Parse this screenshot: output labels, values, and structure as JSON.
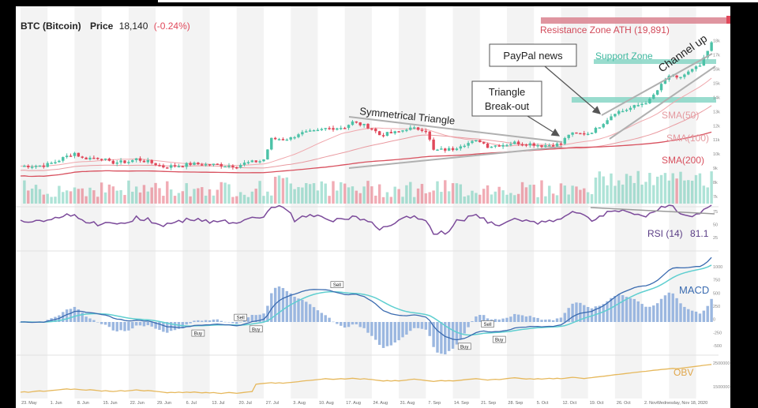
{
  "header": {
    "symbol": "BTC (Bitcoin)",
    "price_label": "Price",
    "price": "18,140",
    "change": "(-0.24%)"
  },
  "annotations": {
    "resistance": "Resistance Zone ATH (19,891)",
    "support": "Support Zone",
    "channel": "Channel up",
    "paypal": "PayPal news",
    "triangle_box_line1": "Triangle",
    "triangle_box_line2": "Break-out",
    "sym_triangle": "Symmetrical Triangle",
    "sma50": "SMA(50)",
    "sma100": "SMA(100)",
    "sma200": "SMA(200)"
  },
  "panels": {
    "rsi": {
      "label": "RSI (14)",
      "value": "81.1"
    },
    "macd": {
      "label": "MACD"
    },
    "obv": {
      "label": "OBV"
    }
  },
  "x_ticks": [
    "23. May",
    "1. Jun",
    "8. Jun",
    "15. Jun",
    "22. Jun",
    "29. Jun",
    "6. Jul",
    "13. Jul",
    "20. Jul",
    "27. Jul",
    "3. Aug",
    "10. Aug",
    "17. Aug",
    "24. Aug",
    "31. Aug",
    "7. Sep",
    "14. Sep",
    "21. Sep",
    "28. Sep",
    "5. Oct",
    "12. Oct",
    "19. Oct",
    "26. Oct",
    "2. Nov",
    "Wednesday, Nov 18, 2020"
  ],
  "price_ticks": [
    "18k",
    "17k",
    "16k",
    "15k",
    "14k",
    "13k",
    "12k",
    "11k",
    "10k",
    "9k",
    "8k",
    "7k"
  ],
  "rsi_ticks": [
    "75",
    "50",
    "25"
  ],
  "macd_ticks": [
    "1000",
    "750",
    "500",
    "250",
    "0",
    "-250",
    "-500"
  ],
  "obv_ticks": [
    "2500000",
    "1500000"
  ],
  "signals": [
    {
      "label": "Sell",
      "day": 82
    },
    {
      "label": "Buy",
      "day": 46
    },
    {
      "label": "Sell",
      "day": 57
    },
    {
      "label": "Buy",
      "day": 61
    },
    {
      "label": "Buy",
      "day": 115
    },
    {
      "label": "Sell",
      "day": 121
    },
    {
      "label": "Buy",
      "day": 124
    }
  ],
  "colors": {
    "bull": "#4cc2a7",
    "bear": "#e0485a",
    "resistance": "#d9838f",
    "support": "#7fd3c2",
    "sma": "#e07a80",
    "rsi": "#7b4a9a",
    "macd_line": "#3a6bb0",
    "macd_signal": "#5fcfd0",
    "macd_hist": "#9bb7e0",
    "obv": "#e6b85c",
    "header_red": "#e0485a"
  },
  "chart_data": {
    "type": "candlestick",
    "title": "BTC (Bitcoin) Price 18,140 (-0.24%)",
    "x_range": [
      "2020-05-23",
      "2020-11-18"
    ],
    "y_range": [
      6500,
      19200
    ],
    "ohlc_weekly_approx": [
      {
        "date": "2020-05-23",
        "open": 9150,
        "close": 9200
      },
      {
        "date": "2020-06-01",
        "open": 9450,
        "close": 10100
      },
      {
        "date": "2020-06-08",
        "open": 9700,
        "close": 9750
      },
      {
        "date": "2020-06-15",
        "open": 9400,
        "close": 9450
      },
      {
        "date": "2020-06-22",
        "open": 9650,
        "close": 9300
      },
      {
        "date": "2020-06-29",
        "open": 9100,
        "close": 9200
      },
      {
        "date": "2020-07-06",
        "open": 9300,
        "close": 9250
      },
      {
        "date": "2020-07-13",
        "open": 9250,
        "close": 9150
      },
      {
        "date": "2020-07-20",
        "open": 9350,
        "close": 9550
      },
      {
        "date": "2020-07-27",
        "open": 11050,
        "close": 11100
      },
      {
        "date": "2020-08-03",
        "open": 11450,
        "close": 11600
      },
      {
        "date": "2020-08-10",
        "open": 11800,
        "close": 11900
      },
      {
        "date": "2020-08-17",
        "open": 12250,
        "close": 11850
      },
      {
        "date": "2020-08-24",
        "open": 11350,
        "close": 11550
      },
      {
        "date": "2020-08-31",
        "open": 11800,
        "close": 11750
      },
      {
        "date": "2020-09-07",
        "open": 10250,
        "close": 10350
      },
      {
        "date": "2020-09-14",
        "open": 10650,
        "close": 10950
      },
      {
        "date": "2020-09-21",
        "open": 10550,
        "close": 10700
      },
      {
        "date": "2020-09-28",
        "open": 10800,
        "close": 10700
      },
      {
        "date": "2020-10-05",
        "open": 10600,
        "close": 10700
      },
      {
        "date": "2020-10-12",
        "open": 11400,
        "close": 11450
      },
      {
        "date": "2020-10-19",
        "open": 11750,
        "close": 12950
      },
      {
        "date": "2020-10-26",
        "open": 13050,
        "close": 13550
      },
      {
        "date": "2020-11-02",
        "open": 13800,
        "close": 15550
      },
      {
        "date": "2020-11-09",
        "open": 15300,
        "close": 16300
      },
      {
        "date": "2020-11-18",
        "open": 17800,
        "close": 18140
      }
    ],
    "sma50_end": 13000,
    "sma100_end": 12000,
    "sma200_end": 10900,
    "resistance_level": 19891,
    "support_levels": [
      16100,
      13900
    ],
    "rsi_last": 81.1,
    "indicators": [
      "SMA(50)",
      "SMA(100)",
      "SMA(200)",
      "RSI (14)",
      "MACD",
      "OBV"
    ]
  }
}
